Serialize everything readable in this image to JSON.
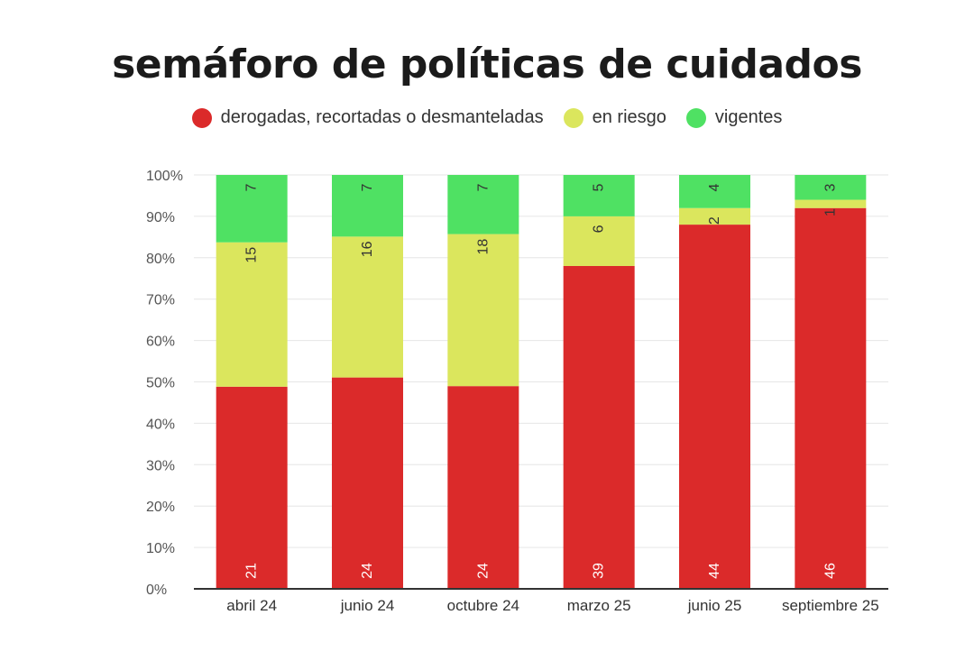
{
  "chart_data": {
    "type": "bar",
    "stacked": true,
    "normalized": true,
    "title": "semáforo de políticas de cuidados",
    "categories": [
      "abril 24",
      "junio 24",
      "octubre 24",
      "marzo 25",
      "junio 25",
      "septiembre 25"
    ],
    "series": [
      {
        "name": "derogadas, recortadas o desmanteladas",
        "color": "#db2a2a",
        "values": [
          21,
          24,
          24,
          39,
          44,
          46
        ]
      },
      {
        "name": "en riesgo",
        "color": "#dbe65d",
        "values": [
          15,
          16,
          18,
          6,
          2,
          1
        ]
      },
      {
        "name": "vigentes",
        "color": "#4fe163",
        "values": [
          7,
          7,
          7,
          5,
          4,
          3
        ]
      }
    ],
    "y_ticks": [
      "0%",
      "10%",
      "20%",
      "30%",
      "40%",
      "50%",
      "60%",
      "70%",
      "80%",
      "90%",
      "100%"
    ],
    "ylim": [
      0,
      100
    ],
    "grid": true,
    "legend_position": "top"
  }
}
